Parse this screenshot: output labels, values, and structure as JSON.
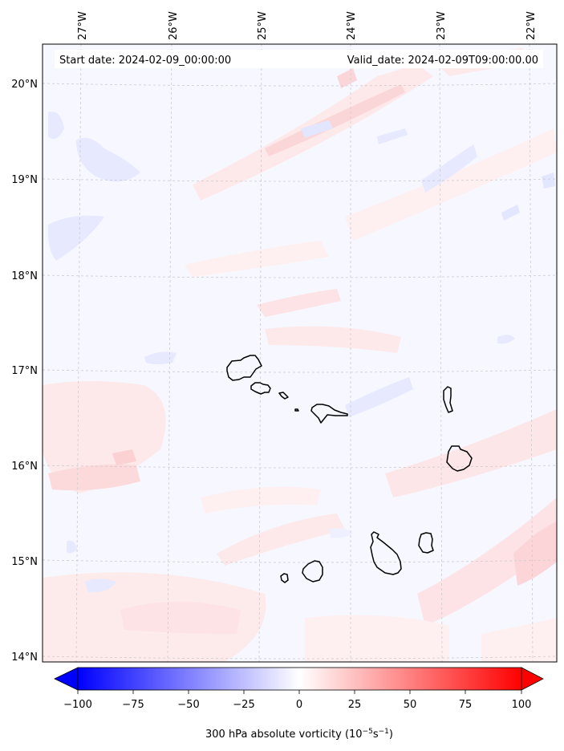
{
  "header": {
    "start_date": "Start date: 2024-02-09_00:00:00",
    "valid_date": "Valid_date: 2024-02-09T09:00:00.00"
  },
  "axes": {
    "lon_labels": [
      "27°W",
      "26°W",
      "25°W",
      "24°W",
      "23°W",
      "22°W"
    ],
    "lat_labels": [
      "20°N",
      "19°N",
      "18°N",
      "17°N",
      "16°N",
      "15°N",
      "14°N"
    ]
  },
  "colorbar": {
    "tick_labels": [
      "−100",
      "−75",
      "−50",
      "−25",
      "0",
      "25",
      "50",
      "75",
      "100"
    ],
    "label_prefix": "300 hPa absolute vorticity (10",
    "label_exp1": "−5",
    "label_mid": "s",
    "label_exp2": "−1",
    "label_suffix": ")",
    "range": [
      -100,
      100
    ],
    "colors": {
      "negative": "#0000ff",
      "zero": "#ffffff",
      "positive": "#ff0000"
    }
  },
  "map": {
    "islands": [
      "Santo Antão",
      "São Vicente",
      "Santa Luzia",
      "São Nicolau",
      "Sal",
      "Boa Vista",
      "Maio",
      "Santiago",
      "Fogo",
      "Brava"
    ],
    "colors": {
      "background": "#f6f7ff",
      "coastline": "#000000",
      "gridline": "#cccccc"
    }
  }
}
